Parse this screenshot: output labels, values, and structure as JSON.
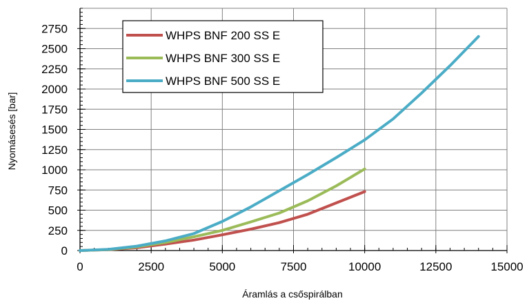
{
  "chart_data": {
    "type": "line",
    "title": "",
    "xlabel": "Áramlás a csőspirálban",
    "ylabel": "Nyomásesés [bar]",
    "xlim": [
      0,
      15000
    ],
    "ylim": [
      0,
      3000
    ],
    "x_ticks": [
      0,
      2500,
      5000,
      7500,
      10000,
      12500,
      15000
    ],
    "y_ticks": [
      0,
      250,
      500,
      750,
      1000,
      1250,
      1500,
      1750,
      2000,
      2250,
      2500,
      2750
    ],
    "grid": true,
    "legend_position": "top-left",
    "series": [
      {
        "name": "WHPS BNF 200 SS E",
        "color": "#c0504d",
        "x": [
          0,
          1000,
          2000,
          3000,
          4000,
          5000,
          6000,
          7000,
          8000,
          9000,
          10000
        ],
        "y": [
          0,
          10,
          35,
          80,
          130,
          195,
          265,
          345,
          450,
          590,
          730
        ]
      },
      {
        "name": "WHPS BNF 300 SS E",
        "color": "#9bbb59",
        "x": [
          0,
          1000,
          2000,
          3000,
          4000,
          5000,
          6000,
          7000,
          8000,
          9000,
          10000
        ],
        "y": [
          0,
          12,
          45,
          100,
          170,
          250,
          355,
          465,
          615,
          800,
          1010
        ]
      },
      {
        "name": "WHPS BNF 500 SS E",
        "color": "#4bacc6",
        "x": [
          0,
          1000,
          2000,
          3000,
          4000,
          5000,
          6000,
          7000,
          8000,
          9000,
          10000,
          11000,
          12000,
          13000,
          14000
        ],
        "y": [
          0,
          15,
          55,
          120,
          210,
          360,
          540,
          740,
          940,
          1150,
          1370,
          1630,
          1950,
          2290,
          2650
        ]
      }
    ]
  }
}
